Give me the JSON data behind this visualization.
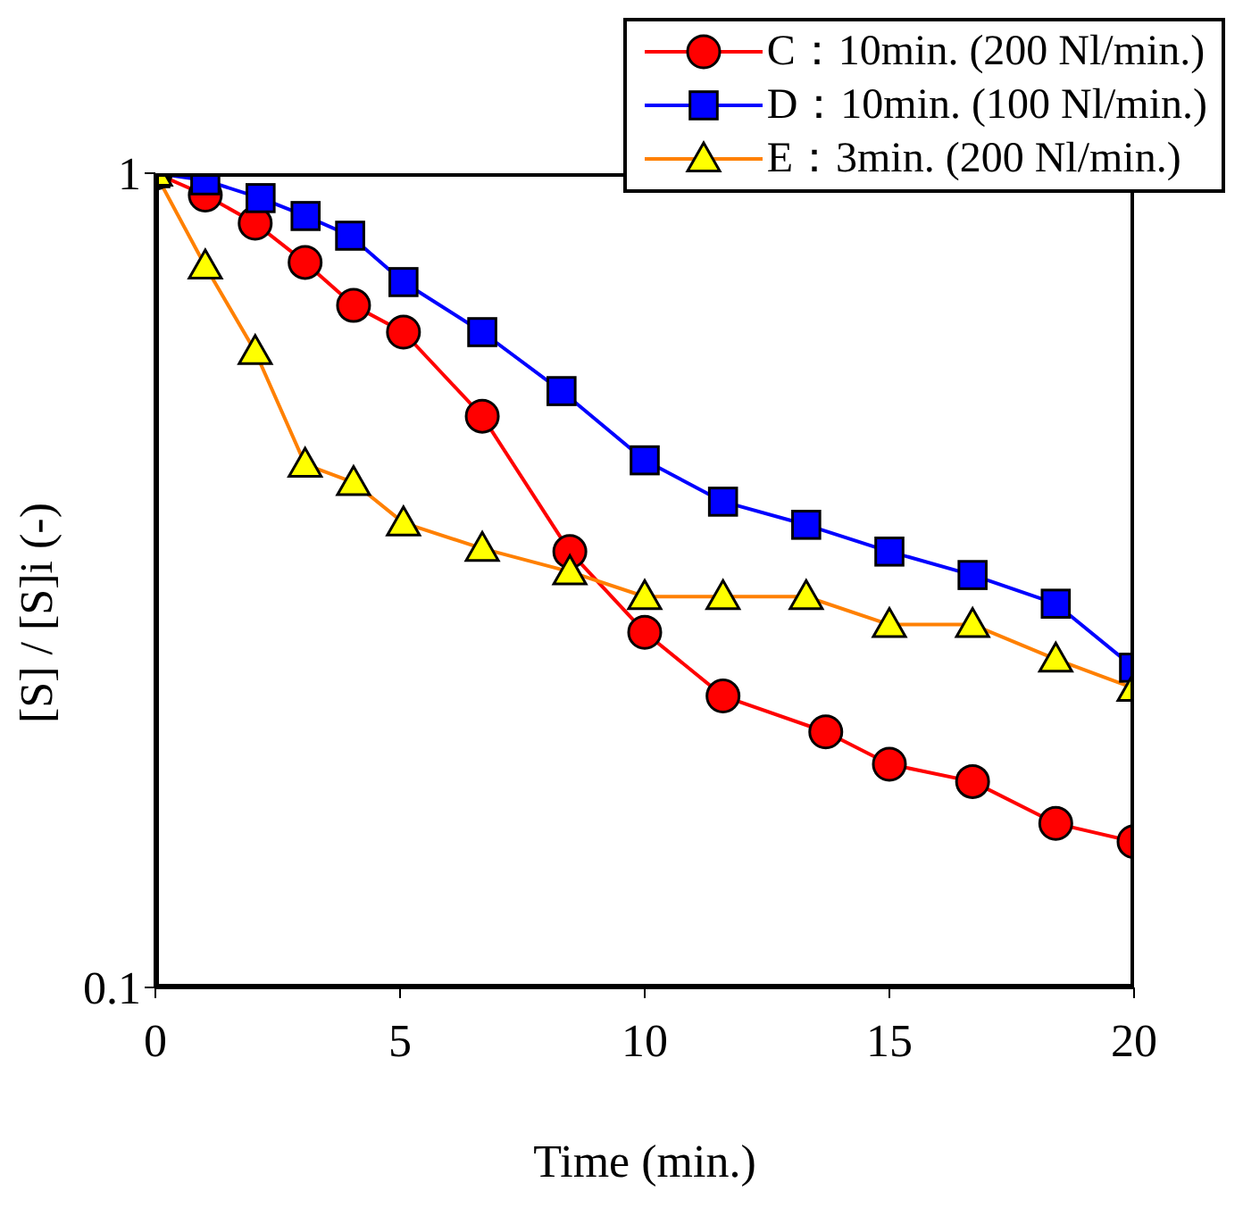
{
  "chart_data": {
    "type": "line",
    "xlabel": "Time (min.)",
    "ylabel": "[S] / [S]i (-)",
    "log": "y",
    "xlim": [
      0,
      20
    ],
    "xticks": [
      0,
      5,
      10,
      15,
      20
    ],
    "ylim": [
      0.1,
      1
    ],
    "yticks": [
      0.1,
      1
    ],
    "grid": false,
    "legend": "top right",
    "line_style": "solid",
    "series": [
      {
        "name": "C：10min. (200 Nl/min.)",
        "color": "#ff0000",
        "marker": "circle",
        "x": [
          0,
          1.02,
          2.04,
          3.06,
          4.05,
          5.07,
          6.68,
          8.47,
          10.0,
          11.6,
          13.7,
          15.0,
          16.7,
          18.4,
          20.0
        ],
        "values": [
          1.0,
          0.94,
          0.868,
          0.777,
          0.688,
          0.638,
          0.503,
          0.343,
          0.273,
          0.228,
          0.206,
          0.188,
          0.179,
          0.159,
          0.151
        ]
      },
      {
        "name": "D：10min. (100 Nl/min.)",
        "color": "#0000ff",
        "marker": "square",
        "x": [
          0,
          1.02,
          2.15,
          3.07,
          3.98,
          5.07,
          6.68,
          8.3,
          10.0,
          11.6,
          13.3,
          15.0,
          16.7,
          18.4,
          20.0
        ],
        "values": [
          1.0,
          0.98,
          0.932,
          0.886,
          0.838,
          0.735,
          0.638,
          0.54,
          0.444,
          0.395,
          0.37,
          0.343,
          0.321,
          0.296,
          0.247
        ]
      },
      {
        "name": "E：3min. (200 Nl/min.)",
        "color": "#ffff00",
        "marker": "triangle",
        "x": [
          0,
          1.02,
          2.04,
          3.06,
          4.05,
          5.07,
          6.68,
          8.47,
          10.0,
          11.6,
          13.3,
          15.0,
          16.7,
          18.4,
          20.0
        ],
        "values": [
          1.0,
          0.769,
          0.604,
          0.439,
          0.417,
          0.372,
          0.346,
          0.324,
          0.302,
          0.302,
          0.302,
          0.279,
          0.279,
          0.253,
          0.233
        ]
      }
    ]
  }
}
